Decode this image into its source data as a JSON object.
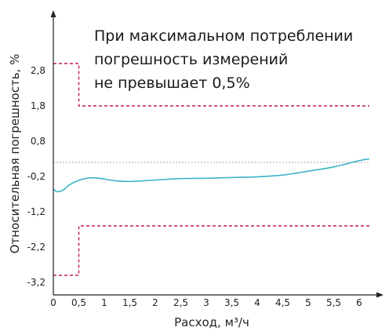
{
  "chart_data": {
    "type": "line",
    "annotation": [
      "При максимальном потреблении",
      "погрешность измерений",
      "не превышает 0,5%"
    ],
    "xlabel": "Расход, м³/ч",
    "ylabel": "Относительная погрешность, %",
    "x_ticks": [
      0,
      0.5,
      1,
      1.5,
      2,
      2.5,
      3,
      3.5,
      4,
      4.5,
      5,
      5.5,
      6
    ],
    "x_tick_labels": [
      "0",
      "0,5",
      "1",
      "1,5",
      "2",
      "2,5",
      "3",
      "3,5",
      "4",
      "4,5",
      "5",
      "5,5",
      "6"
    ],
    "y_ticks": [
      2.8,
      1.8,
      0.8,
      -0.2,
      -1.2,
      -2.2,
      -3.2
    ],
    "y_tick_labels": [
      "2,8",
      "1,8",
      "0,8",
      "-0,2",
      "-1,2",
      "-2,2",
      "-3,2"
    ],
    "xlim": [
      0,
      6.2
    ],
    "ylim": [
      -3.2,
      2.8
    ],
    "grid": false,
    "reference_line": 0.2,
    "limits": {
      "upper": {
        "x": [
          0,
          0.5,
          0.5,
          6.2
        ],
        "y": [
          3.0,
          3.0,
          1.8,
          1.8
        ]
      },
      "lower": {
        "x": [
          0,
          0.5,
          0.5,
          6.2
        ],
        "y": [
          -3.0,
          -3.0,
          -1.6,
          -1.6
        ]
      }
    },
    "series": [
      {
        "x": [
          0,
          0.05,
          0.1,
          0.2,
          0.3,
          0.5,
          0.7,
          0.9,
          1.2,
          1.5,
          2,
          2.5,
          3,
          3.5,
          4,
          4.5,
          5,
          5.5,
          6,
          6.2
        ],
        "y": [
          -0.55,
          -0.62,
          -0.63,
          -0.58,
          -0.45,
          -0.31,
          -0.24,
          -0.25,
          -0.32,
          -0.34,
          -0.3,
          -0.26,
          -0.25,
          -0.23,
          -0.21,
          -0.16,
          -0.05,
          0.07,
          0.25,
          0.3
        ]
      }
    ],
    "colors": {
      "series": "#3db3c9",
      "limits": "#c2185b",
      "reference": "#a9a9a9",
      "axis": "#222222"
    }
  }
}
